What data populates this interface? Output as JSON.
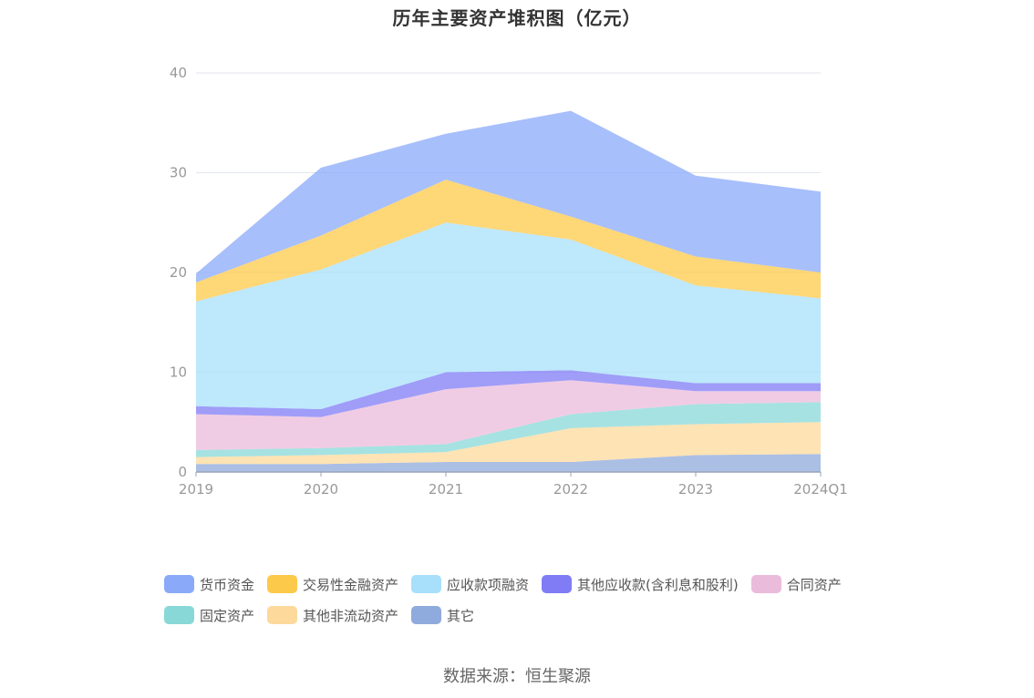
{
  "chart_data": {
    "type": "area",
    "stacked": true,
    "title": "历年主要资产堆积图（亿元）",
    "categories": [
      "2019",
      "2020",
      "2021",
      "2022",
      "2023",
      "2024Q1"
    ],
    "ylim": [
      0,
      40
    ],
    "yticks": [
      "0",
      "10",
      "20",
      "30",
      "40"
    ],
    "grid": true,
    "legend_position": "bottom",
    "series": [
      {
        "name": "其它",
        "color": "#8faadc",
        "values": [
          0.8,
          0.8,
          1.0,
          1.0,
          1.7,
          1.8
        ]
      },
      {
        "name": "其他非流动资产",
        "color": "#fdd99b",
        "values": [
          0.7,
          0.9,
          1.0,
          3.4,
          3.1,
          3.2
        ]
      },
      {
        "name": "固定资产",
        "color": "#88d8d8",
        "values": [
          0.7,
          0.7,
          0.8,
          1.4,
          2.0,
          2.0
        ]
      },
      {
        "name": "合同资产",
        "color": "#ebbbdb",
        "values": [
          3.6,
          3.1,
          5.5,
          3.4,
          1.3,
          1.1
        ]
      },
      {
        "name": "其他应收款(含利息和股利)",
        "color": "#7f7cf5",
        "values": [
          0.8,
          0.8,
          1.7,
          1.0,
          0.8,
          0.8
        ]
      },
      {
        "name": "应收款项融资",
        "color": "#a8e0fb",
        "values": [
          10.5,
          14.0,
          15.0,
          13.1,
          9.8,
          8.5
        ]
      },
      {
        "name": "交易性金融资产",
        "color": "#fdc94a",
        "values": [
          1.9,
          3.4,
          4.3,
          2.3,
          2.9,
          2.6
        ]
      },
      {
        "name": "货币资金",
        "color": "#8aa9f9",
        "values": [
          0.9,
          6.8,
          4.6,
          10.6,
          8.1,
          8.1
        ]
      }
    ]
  },
  "legend": [
    {
      "label": "货币资金",
      "color": "#8aa9f9"
    },
    {
      "label": "交易性金融资产",
      "color": "#fdc94a"
    },
    {
      "label": "应收款项融资",
      "color": "#a8e0fb"
    },
    {
      "label": "其他应收款(含利息和股利)",
      "color": "#7f7cf5"
    },
    {
      "label": "合同资产",
      "color": "#ebbbdb"
    },
    {
      "label": "固定资产",
      "color": "#88d8d8"
    },
    {
      "label": "其他非流动资产",
      "color": "#fdd99b"
    },
    {
      "label": "其它",
      "color": "#8faadc"
    }
  ],
  "source": "数据来源：恒生聚源"
}
